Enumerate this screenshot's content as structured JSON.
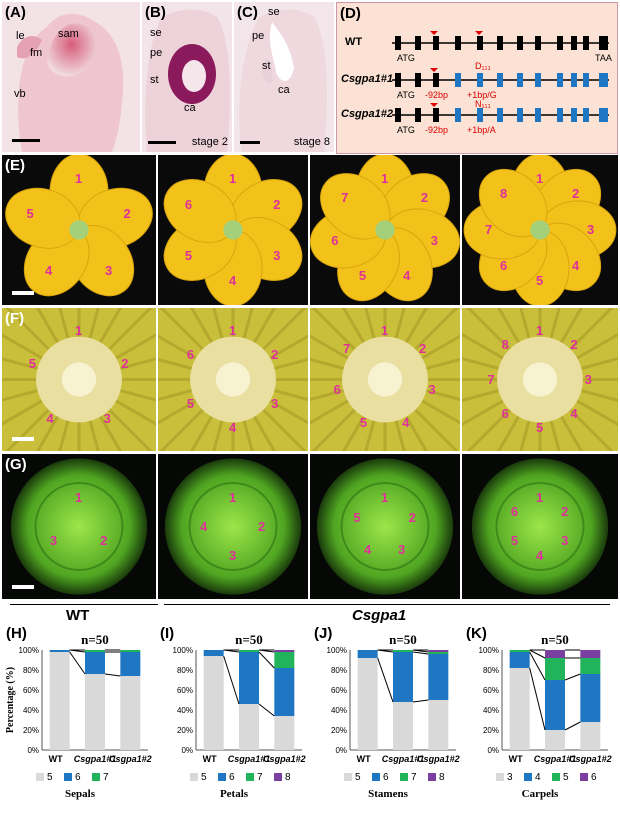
{
  "panels": {
    "A": {
      "label": "(A)",
      "tissue": [
        "le",
        "sam",
        "fm",
        "vb"
      ]
    },
    "B": {
      "label": "(B)",
      "tissue": [
        "se",
        "pe",
        "st",
        "ca"
      ],
      "stage": "stage 2"
    },
    "C": {
      "label": "(C)",
      "tissue": [
        "se",
        "pe",
        "st",
        "ca"
      ],
      "stage": "stage 8"
    },
    "D": {
      "label": "(D)",
      "rows": [
        {
          "name": "WT",
          "start": "ATG",
          "end": "TAA",
          "note1": "",
          "note2": ""
        },
        {
          "name": "Csgpa1#1",
          "start": "ATG",
          "end": "",
          "note1": "-92bp",
          "note2": "+1bp/G",
          "note3": "D₁₁₁",
          "note4": "N₁₁₁"
        },
        {
          "name": "Csgpa1#2",
          "start": "ATG",
          "end": "",
          "note1": "-92bp",
          "note2": "+1bp/A"
        }
      ]
    },
    "E": {
      "label": "(E)",
      "flowers": [
        [
          "1",
          "2",
          "3",
          "4",
          "5"
        ],
        [
          "1",
          "2",
          "3",
          "4",
          "5",
          "6"
        ],
        [
          "1",
          "2",
          "3",
          "4",
          "5",
          "6",
          "7"
        ],
        [
          "1",
          "2",
          "3",
          "4",
          "5",
          "6",
          "7",
          "8"
        ]
      ]
    },
    "F": {
      "label": "(F)",
      "flowers": [
        [
          "1",
          "2",
          "3",
          "4",
          "5"
        ],
        [
          "1",
          "2",
          "3",
          "4",
          "5",
          "6"
        ],
        [
          "1",
          "2",
          "3",
          "4",
          "5",
          "6",
          "7"
        ],
        [
          "1",
          "2",
          "3",
          "4",
          "5",
          "6",
          "7",
          "8"
        ]
      ]
    },
    "G": {
      "label": "(G)",
      "flowers": [
        [
          "1",
          "2",
          "3"
        ],
        [
          "1",
          "2",
          "3",
          "4"
        ],
        [
          "1",
          "2",
          "3",
          "4",
          "5"
        ],
        [
          "1",
          "2",
          "3",
          "4",
          "5",
          "6"
        ]
      ]
    }
  },
  "groups": {
    "wt": "WT",
    "mutant": "Csgpa1"
  },
  "chart_data": [
    {
      "label": "(H)",
      "type": "bar",
      "stacked": true,
      "title": "n=50",
      "xlabel": "Sepals",
      "ylabel": "Percentage (%)",
      "categories": [
        "WT",
        "Csgpa1#1",
        "Csgpa1#2"
      ],
      "series": [
        {
          "name": "5",
          "color": "#d9d9d9",
          "values": [
            98,
            76,
            74
          ]
        },
        {
          "name": "6",
          "color": "#1f77c4",
          "values": [
            2,
            22,
            24
          ]
        },
        {
          "name": "7",
          "color": "#22b45a",
          "values": [
            0,
            2,
            2
          ]
        }
      ],
      "yticks": [
        "0%",
        "20%",
        "40%",
        "60%",
        "80%",
        "100%"
      ]
    },
    {
      "label": "(I)",
      "type": "bar",
      "stacked": true,
      "title": "n=50",
      "xlabel": "Petals",
      "categories": [
        "WT",
        "Csgpa1#1",
        "Csgpa1#2"
      ],
      "series": [
        {
          "name": "5",
          "color": "#d9d9d9",
          "values": [
            94,
            46,
            34
          ]
        },
        {
          "name": "6",
          "color": "#1f77c4",
          "values": [
            6,
            52,
            48
          ]
        },
        {
          "name": "7",
          "color": "#22b45a",
          "values": [
            0,
            2,
            16
          ]
        },
        {
          "name": "8",
          "color": "#7b3fa0",
          "values": [
            0,
            0,
            2
          ]
        }
      ],
      "yticks": [
        "0%",
        "20%",
        "40%",
        "60%",
        "80%",
        "100%"
      ]
    },
    {
      "label": "(J)",
      "type": "bar",
      "stacked": true,
      "title": "n=50",
      "xlabel": "Stamens",
      "categories": [
        "WT",
        "Csgpa1#1",
        "Csgpa1#2"
      ],
      "series": [
        {
          "name": "5",
          "color": "#d9d9d9",
          "values": [
            92,
            48,
            50
          ]
        },
        {
          "name": "6",
          "color": "#1f77c4",
          "values": [
            8,
            50,
            46
          ]
        },
        {
          "name": "7",
          "color": "#22b45a",
          "values": [
            0,
            2,
            2
          ]
        },
        {
          "name": "8",
          "color": "#7b3fa0",
          "values": [
            0,
            0,
            2
          ]
        }
      ],
      "yticks": [
        "0%",
        "20%",
        "40%",
        "60%",
        "80%",
        "100%"
      ]
    },
    {
      "label": "(K)",
      "type": "bar",
      "stacked": true,
      "title": "n=50",
      "xlabel": "Carpels",
      "categories": [
        "WT",
        "Csgpa1#1",
        "Csgpa1#2"
      ],
      "series": [
        {
          "name": "3",
          "color": "#d9d9d9",
          "values": [
            82,
            20,
            28
          ]
        },
        {
          "name": "4",
          "color": "#1f77c4",
          "values": [
            16,
            50,
            48
          ]
        },
        {
          "name": "5",
          "color": "#22b45a",
          "values": [
            2,
            22,
            16
          ]
        },
        {
          "name": "6",
          "color": "#7b3fa0",
          "values": [
            0,
            8,
            8
          ]
        }
      ],
      "yticks": [
        "0%",
        "20%",
        "40%",
        "60%",
        "80%",
        "100%"
      ]
    }
  ]
}
